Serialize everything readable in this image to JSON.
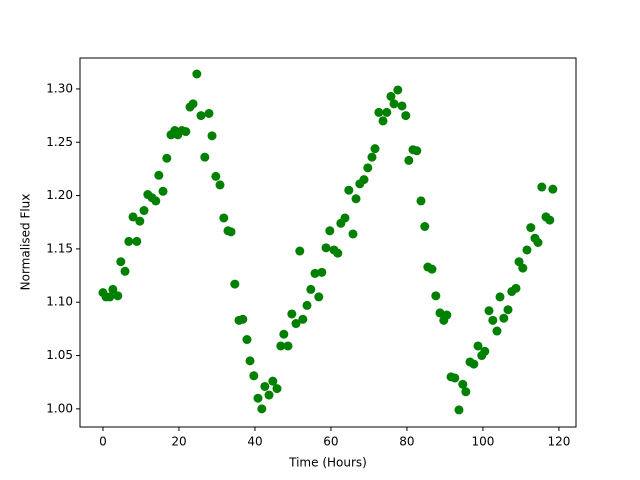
{
  "chart_data": {
    "type": "scatter",
    "xlabel": "Time (Hours)",
    "ylabel": "Normalised Flux",
    "color": "green",
    "xlim": [
      -6.05,
      124.5
    ],
    "ylim": [
      0.983,
      1.329
    ],
    "xticks": [
      0,
      20,
      40,
      60,
      80,
      100,
      120
    ],
    "yticks": [
      {
        "value": 1,
        "label": "1.00"
      },
      1.05,
      {
        "value": 1.1,
        "label": "1.10"
      },
      1.15,
      {
        "value": 1.2,
        "label": "1.20"
      },
      1.25,
      {
        "value": 1.3,
        "label": "1.30"
      }
    ],
    "x": [
      0,
      0.8,
      1.8,
      2.6,
      3.9,
      4.7,
      5.8,
      6.8,
      7.9,
      8.9,
      9.7,
      10.8,
      11.8,
      12.9,
      13.9,
      14.7,
      15.8,
      16.8,
      17.9,
      18.9,
      19.7,
      20.8,
      21.8,
      22.9,
      23.7,
      24.7,
      25.8,
      26.8,
      27.9,
      28.7,
      29.7,
      30.8,
      31.8,
      32.9,
      33.7,
      34.7,
      35.8,
      36.8,
      37.9,
      38.7,
      39.7,
      40.8,
      41.8,
      42.6,
      43.7,
      44.7,
      45.8,
      46.8,
      47.6,
      48.7,
      49.7,
      50.8,
      51.8,
      52.6,
      53.7,
      54.7,
      55.8,
      56.8,
      57.6,
      58.7,
      59.7,
      60.8,
      61.8,
      62.6,
      63.7,
      64.7,
      65.8,
      66.6,
      67.6,
      68.7,
      69.7,
      70.8,
      71.6,
      72.6,
      73.7,
      74.7,
      75.8,
      76.6,
      77.6,
      78.7,
      79.7,
      80.5,
      81.6,
      82.6,
      83.7,
      84.7,
      85.5,
      86.6,
      87.6,
      88.7,
      89.7,
      90.5,
      91.6,
      92.6,
      93.7,
      94.7,
      95.5,
      96.6,
      97.6,
      98.7,
      99.7,
      100.5,
      101.6,
      102.6,
      103.7,
      104.5,
      105.5,
      106.6,
      107.6,
      108.7,
      109.5,
      110.5,
      111.6,
      112.6,
      113.7,
      114.5,
      115.5,
      116.6,
      117.6,
      118.4
    ],
    "values": [
      1.109,
      1.105,
      1.105,
      1.112,
      1.106,
      1.138,
      1.129,
      1.157,
      1.18,
      1.157,
      1.176,
      1.186,
      1.201,
      1.198,
      1.195,
      1.219,
      1.204,
      1.235,
      1.257,
      1.261,
      1.257,
      1.261,
      1.26,
      1.283,
      1.286,
      1.314,
      1.275,
      1.236,
      1.277,
      1.256,
      1.218,
      1.21,
      1.179,
      1.167,
      1.166,
      1.117,
      1.083,
      1.084,
      1.065,
      1.045,
      1.031,
      1.01,
      1.0,
      1.021,
      1.013,
      1.026,
      1.019,
      1.059,
      1.07,
      1.059,
      1.089,
      1.08,
      1.148,
      1.084,
      1.097,
      1.112,
      1.127,
      1.105,
      1.128,
      1.151,
      1.167,
      1.149,
      1.146,
      1.174,
      1.179,
      1.205,
      1.164,
      1.197,
      1.211,
      1.215,
      1.226,
      1.236,
      1.244,
      1.278,
      1.27,
      1.278,
      1.293,
      1.286,
      1.299,
      1.284,
      1.275,
      1.233,
      1.243,
      1.242,
      1.195,
      1.171,
      1.133,
      1.131,
      1.106,
      1.09,
      1.083,
      1.088,
      1.03,
      1.029,
      0.999,
      1.023,
      1.016,
      1.044,
      1.042,
      1.059,
      1.05,
      1.054,
      1.092,
      1.083,
      1.073,
      1.105,
      1.085,
      1.093,
      1.11,
      1.113,
      1.138,
      1.132,
      1.149,
      1.17,
      1.16,
      1.156,
      1.208,
      1.18,
      1.177,
      1.206
    ]
  }
}
